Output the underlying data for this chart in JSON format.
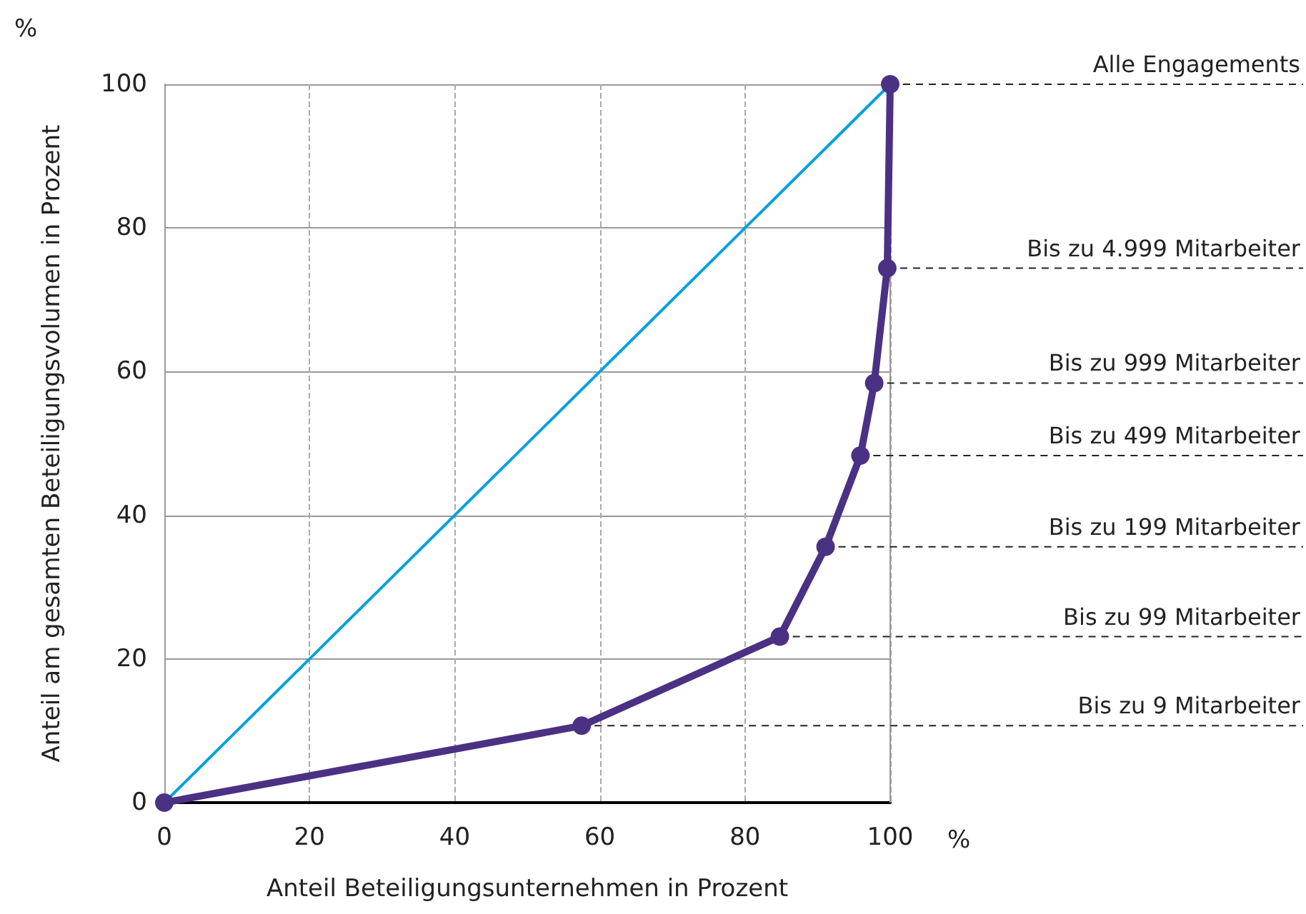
{
  "chart_data": {
    "type": "line",
    "xlabel": "Anteil Beteiligungsunternehmen in Prozent",
    "ylabel": "Anteil am gesamten Beteiligungsvolumen in Prozent",
    "xlim": [
      0,
      100
    ],
    "xticks": [
      0,
      20,
      40,
      60,
      80,
      100
    ],
    "ylim": [
      0,
      100
    ],
    "yticks": [
      0,
      20,
      40,
      60,
      80,
      100
    ],
    "grid": true,
    "series": [
      {
        "color": "#00a0e0",
        "x": [
          0,
          100
        ],
        "values": [
          0,
          100
        ],
        "marker": "none"
      },
      {
        "color": "#4b3183",
        "x": [
          0,
          57.5,
          84.8,
          91.1,
          95.9,
          97.8,
          99.6,
          100
        ],
        "values": [
          0,
          10.7,
          23.1,
          35.6,
          48.3,
          58.4,
          74.4,
          100
        ],
        "marker": "circle"
      }
    ],
    "annotations": [
      "%",
      "%",
      {
        "text": "Bis zu 9 Mitarbeiter",
        "x": 57.5,
        "y": 10.7
      },
      {
        "text": "Bis zu 99 Mitarbeiter",
        "x": 84.8,
        "y": 23.1
      },
      {
        "text": "Bis zu 199 Mitarbeiter",
        "x": 91.1,
        "y": 35.6
      },
      {
        "text": "Bis zu 499 Mitarbeiter",
        "x": 95.9,
        "y": 48.3
      },
      {
        "text": "Bis zu 999 Mitarbeiter",
        "x": 97.8,
        "y": 58.4
      },
      {
        "text": "Bis zu 4.999 Mitarbeiter",
        "x": 99.6,
        "y": 74.4
      },
      {
        "text": "Alle Engagements",
        "x": 100,
        "y": 100
      }
    ]
  }
}
